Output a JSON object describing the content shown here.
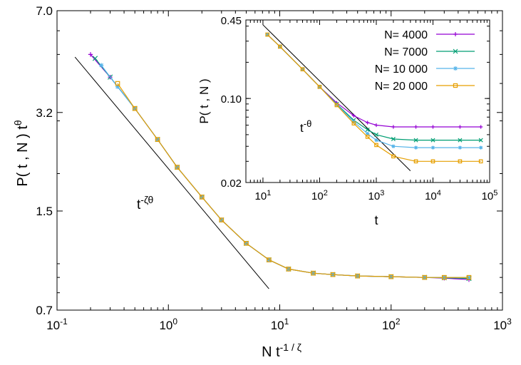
{
  "chart_data": [
    {
      "type": "line",
      "scale": "log-log",
      "xlabel": "N t",
      "xlabel_exponent": "-1 / ζ",
      "ylabel": "P( t , N ) t",
      "ylabel_exponent": "θ",
      "xlim": [
        0.1,
        1000
      ],
      "ylim": [
        0.7,
        7.0
      ],
      "xticks": [
        {
          "value": 0.1,
          "base": "10",
          "exp": "-1"
        },
        {
          "value": 1,
          "base": "10",
          "exp": "0"
        },
        {
          "value": 10,
          "base": "10",
          "exp": "1"
        },
        {
          "value": 100,
          "base": "10",
          "exp": "2"
        },
        {
          "value": 1000,
          "base": "10",
          "exp": "3"
        }
      ],
      "yticks": [
        {
          "value": 0.7,
          "label": "0.7"
        },
        {
          "value": 1.5,
          "label": "1.5"
        },
        {
          "value": 3.2,
          "label": "3.2"
        },
        {
          "value": 7.0,
          "label": "7.0"
        }
      ],
      "reference_line": {
        "label": "t",
        "label_exponent": "-ζθ",
        "points": [
          [
            0.145,
            4.9
          ],
          [
            8.0,
            0.825
          ]
        ]
      },
      "series": [
        {
          "name": "N= 4000",
          "color": "#9400D3",
          "marker": "plus",
          "x": [
            0.2,
            0.3,
            0.5,
            0.8,
            1.2,
            2,
            3,
            5,
            8,
            12,
            20,
            30,
            50,
            100,
            200,
            300,
            500
          ],
          "y": [
            5.0,
            4.2,
            3.3,
            2.6,
            2.1,
            1.67,
            1.4,
            1.17,
            1.03,
            0.96,
            0.93,
            0.92,
            0.91,
            0.905,
            0.9,
            0.895,
            0.885
          ]
        },
        {
          "name": "N= 7000",
          "color": "#009E73",
          "marker": "cross",
          "x": [
            0.22,
            0.3,
            0.5,
            0.8,
            1.2,
            2,
            3,
            5,
            8,
            12,
            20,
            30,
            50,
            100,
            200,
            300,
            500
          ],
          "y": [
            4.85,
            4.2,
            3.3,
            2.6,
            2.1,
            1.67,
            1.4,
            1.17,
            1.03,
            0.96,
            0.93,
            0.92,
            0.91,
            0.905,
            0.9,
            0.898,
            0.893
          ]
        },
        {
          "name": "N= 10 000",
          "color": "#56B4E9",
          "marker": "star",
          "x": [
            0.25,
            0.35,
            0.5,
            0.8,
            1.2,
            2,
            3,
            5,
            8,
            12,
            20,
            30,
            50,
            100,
            200,
            300,
            500
          ],
          "y": [
            4.6,
            3.9,
            3.3,
            2.6,
            2.1,
            1.67,
            1.4,
            1.17,
            1.03,
            0.96,
            0.93,
            0.92,
            0.91,
            0.905,
            0.9,
            0.9,
            0.9
          ]
        },
        {
          "name": "N= 20 000",
          "color": "#E69F00",
          "marker": "square",
          "x": [
            0.35,
            0.5,
            0.8,
            1.2,
            2,
            3,
            5,
            8,
            12,
            20,
            30,
            50,
            100,
            200,
            300,
            500
          ],
          "y": [
            4.0,
            3.3,
            2.6,
            2.1,
            1.67,
            1.4,
            1.17,
            1.03,
            0.96,
            0.93,
            0.92,
            0.91,
            0.905,
            0.9,
            0.9,
            0.9
          ]
        }
      ]
    },
    {
      "type": "line",
      "scale": "log-log",
      "inset": true,
      "xlabel": "t",
      "ylabel": "P( t , N )",
      "xlim": [
        5,
        100000
      ],
      "ylim": [
        0.02,
        0.45
      ],
      "xticks": [
        {
          "value": 10,
          "base": "10",
          "exp": "1"
        },
        {
          "value": 100,
          "base": "10",
          "exp": "2"
        },
        {
          "value": 1000,
          "base": "10",
          "exp": "3"
        },
        {
          "value": 10000,
          "base": "10",
          "exp": "4"
        },
        {
          "value": 100000,
          "base": "10",
          "exp": "5"
        }
      ],
      "yticks": [
        {
          "value": 0.02,
          "label": "0.02"
        },
        {
          "value": 0.1,
          "label": "0.10"
        },
        {
          "value": 0.45,
          "label": "0.45"
        }
      ],
      "reference_line": {
        "label": "t",
        "label_exponent": "-θ",
        "points": [
          [
            10,
            0.41
          ],
          [
            4000,
            0.025
          ]
        ]
      },
      "series": [
        {
          "name": "N= 4000",
          "color": "#9400D3",
          "marker": "plus",
          "x": [
            12,
            20,
            50,
            100,
            200,
            400,
            700,
            1000,
            2000,
            5000,
            10000,
            30000,
            70000
          ],
          "y": [
            0.34,
            0.27,
            0.175,
            0.125,
            0.092,
            0.072,
            0.063,
            0.06,
            0.058,
            0.058,
            0.058,
            0.058,
            0.058
          ]
        },
        {
          "name": "N= 7000",
          "color": "#009E73",
          "marker": "cross",
          "x": [
            12,
            20,
            50,
            100,
            200,
            400,
            700,
            1000,
            2000,
            5000,
            10000,
            30000,
            70000
          ],
          "y": [
            0.34,
            0.27,
            0.175,
            0.125,
            0.09,
            0.066,
            0.055,
            0.05,
            0.046,
            0.045,
            0.045,
            0.045,
            0.045
          ]
        },
        {
          "name": "N= 10 000",
          "color": "#56B4E9",
          "marker": "star",
          "x": [
            12,
            20,
            50,
            100,
            200,
            400,
            700,
            1000,
            2000,
            5000,
            10000,
            30000,
            70000
          ],
          "y": [
            0.34,
            0.27,
            0.175,
            0.125,
            0.089,
            0.064,
            0.051,
            0.045,
            0.04,
            0.039,
            0.039,
            0.039,
            0.039
          ]
        },
        {
          "name": "N= 20 000",
          "color": "#E69F00",
          "marker": "square",
          "x": [
            12,
            20,
            50,
            100,
            200,
            400,
            700,
            1000,
            2000,
            5000,
            10000,
            30000,
            70000
          ],
          "y": [
            0.34,
            0.27,
            0.175,
            0.125,
            0.088,
            0.062,
            0.048,
            0.041,
            0.033,
            0.03,
            0.03,
            0.03,
            0.03
          ]
        }
      ]
    }
  ]
}
